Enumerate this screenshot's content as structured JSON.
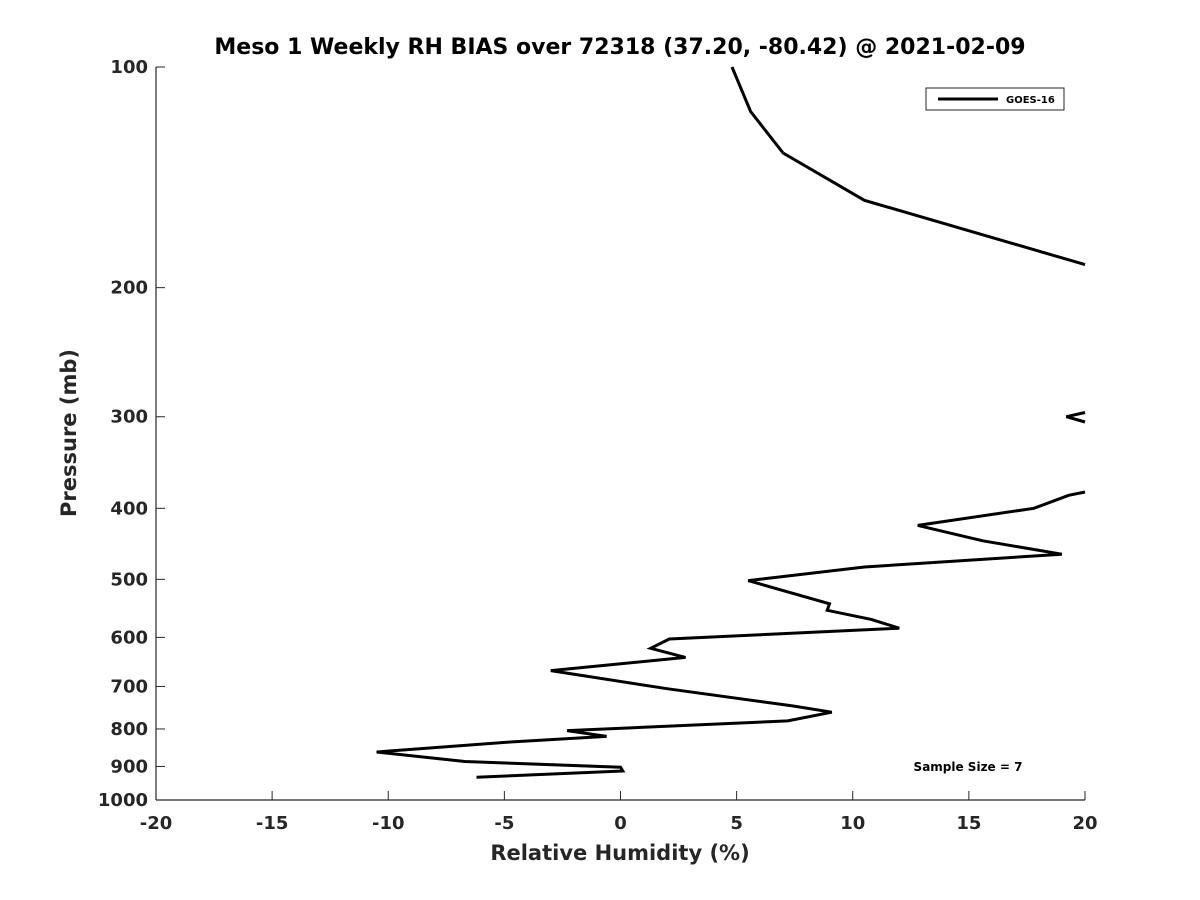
{
  "chart_data": {
    "type": "line",
    "title": "Meso 1 Weekly RH BIAS over 72318 (37.20, -80.42) @ 2021-02-09",
    "xlabel": "Relative Humidity (%)",
    "ylabel": "Pressure (mb)",
    "xlim": [
      -20,
      20
    ],
    "ylim": [
      100,
      1000
    ],
    "y_scale": "log",
    "y_reversed": true,
    "x_ticks": [
      -20,
      -15,
      -10,
      -5,
      0,
      5,
      10,
      15,
      20
    ],
    "x_tick_labels": [
      "-20",
      "-15",
      "-10",
      "-5",
      "0",
      "5",
      "10",
      "15",
      "20"
    ],
    "y_ticks": [
      100,
      200,
      300,
      400,
      500,
      600,
      700,
      800,
      900,
      1000
    ],
    "y_tick_labels": [
      "100",
      "200",
      "300",
      "400",
      "500",
      "600",
      "700",
      "800",
      "900",
      "1000"
    ],
    "grid": false,
    "legend_position": "top-right",
    "annotation": "Sample Size = 7",
    "series": [
      {
        "name": "GOES-16",
        "color": "#000000",
        "segments": [
          [
            {
              "x": 4.8,
              "y": 100
            },
            {
              "x": 5.6,
              "y": 115
            },
            {
              "x": 7.0,
              "y": 131
            },
            {
              "x": 10.5,
              "y": 152
            },
            {
              "x": 20.0,
              "y": 186
            }
          ],
          [
            {
              "x": 20.0,
              "y": 296
            },
            {
              "x": 19.2,
              "y": 300
            },
            {
              "x": 20.0,
              "y": 305
            }
          ],
          [
            {
              "x": 20.0,
              "y": 380
            },
            {
              "x": 19.3,
              "y": 384
            },
            {
              "x": 17.8,
              "y": 400
            },
            {
              "x": 12.8,
              "y": 422
            },
            {
              "x": 15.6,
              "y": 443
            },
            {
              "x": 19.0,
              "y": 462
            },
            {
              "x": 10.5,
              "y": 481
            },
            {
              "x": 5.5,
              "y": 502
            },
            {
              "x": 9.0,
              "y": 540
            },
            {
              "x": 8.9,
              "y": 551
            },
            {
              "x": 10.8,
              "y": 567
            },
            {
              "x": 12.0,
              "y": 583
            },
            {
              "x": 2.1,
              "y": 603
            },
            {
              "x": 1.3,
              "y": 621
            },
            {
              "x": 2.8,
              "y": 639
            },
            {
              "x": -3.0,
              "y": 666
            },
            {
              "x": 2.0,
              "y": 705
            },
            {
              "x": 7.4,
              "y": 744
            },
            {
              "x": 9.1,
              "y": 759
            },
            {
              "x": 7.2,
              "y": 780
            },
            {
              "x": -2.3,
              "y": 804
            },
            {
              "x": -0.6,
              "y": 819
            },
            {
              "x": -4.9,
              "y": 834
            },
            {
              "x": -10.5,
              "y": 860
            },
            {
              "x": -6.7,
              "y": 886
            },
            {
              "x": 0.0,
              "y": 902
            },
            {
              "x": 0.1,
              "y": 913
            },
            {
              "x": -6.2,
              "y": 931
            }
          ]
        ]
      }
    ]
  }
}
